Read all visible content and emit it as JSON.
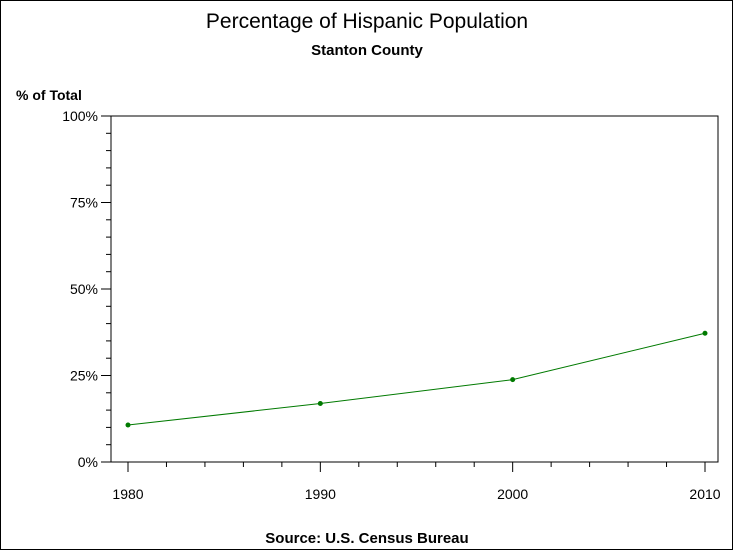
{
  "chart_data": {
    "type": "line",
    "title": "Percentage of Hispanic Population",
    "subtitle": "Stanton County",
    "ylabel": "% of Total",
    "xlabel": "",
    "source": "Source: U.S. Census Bureau",
    "x": [
      1980,
      1990,
      2000,
      2010
    ],
    "xlim": [
      1980,
      2010
    ],
    "x_tick_labels": [
      "1980",
      "1990",
      "2000",
      "2010"
    ],
    "ylim": [
      0,
      100
    ],
    "y_ticks": [
      0,
      25,
      50,
      75,
      100
    ],
    "y_tick_labels": [
      "0%",
      "25%",
      "50%",
      "75%",
      "100%"
    ],
    "series": [
      {
        "values": [
          10.7,
          16.9,
          23.8,
          37.2
        ],
        "color": "#007a00"
      }
    ],
    "grid": false,
    "legend": "none"
  }
}
